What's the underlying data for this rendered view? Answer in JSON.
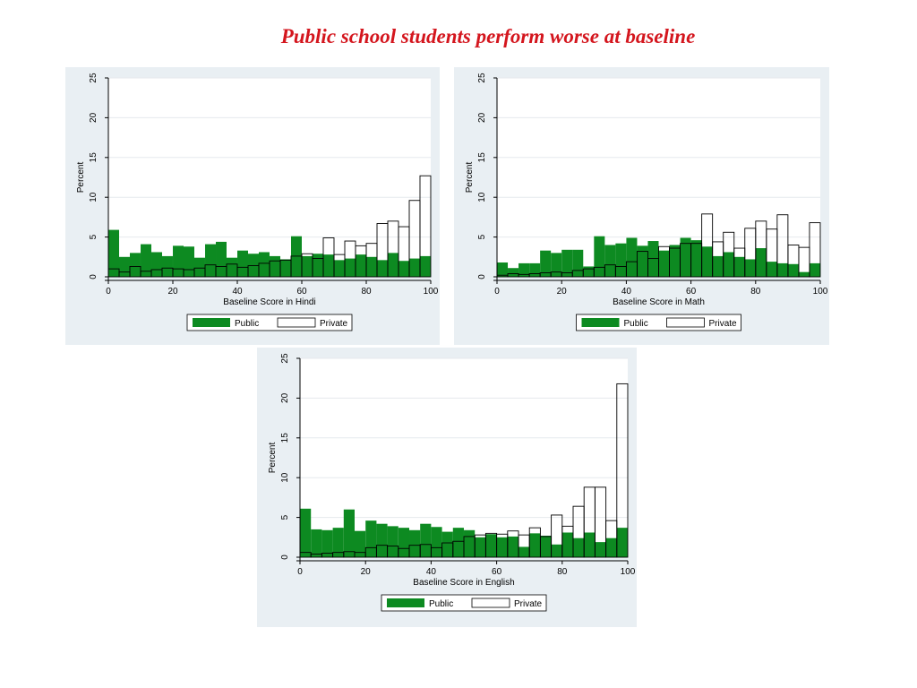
{
  "title": "Public school students perform worse at baseline",
  "colors": {
    "public": "#0d8a21",
    "private": "#ffffff",
    "title": "#d4161e"
  },
  "chart_data": [
    {
      "type": "bar",
      "xlabel": "Baseline Score in Hindi",
      "ylabel": "Percent",
      "xlim": [
        0,
        100
      ],
      "ylim": [
        0,
        25
      ],
      "xticks": [
        0,
        20,
        40,
        60,
        80,
        100
      ],
      "yticks": [
        0,
        5,
        10,
        15,
        20,
        25
      ],
      "bin_width": 3.33,
      "x": [
        1.67,
        5,
        8.33,
        11.67,
        15,
        18.33,
        21.67,
        25,
        28.33,
        31.67,
        35,
        38.33,
        41.67,
        45,
        48.33,
        51.67,
        55,
        58.33,
        61.67,
        65,
        68.33,
        71.67,
        75,
        78.33,
        81.67,
        85,
        88.33,
        91.67,
        95,
        98.33
      ],
      "series": [
        {
          "name": "Public",
          "values": [
            5.9,
            2.5,
            3.0,
            4.1,
            3.1,
            2.6,
            3.9,
            3.8,
            2.4,
            4.1,
            4.4,
            2.4,
            3.3,
            2.9,
            3.1,
            2.6,
            2.2,
            5.1,
            2.6,
            2.9,
            2.8,
            2.1,
            2.3,
            2.8,
            2.5,
            2.1,
            3.0,
            2.0,
            2.3,
            2.6
          ]
        },
        {
          "name": "Private",
          "values": [
            1.0,
            0.6,
            1.3,
            0.7,
            0.9,
            1.1,
            1.0,
            0.9,
            1.1,
            1.5,
            1.3,
            1.6,
            1.2,
            1.4,
            1.7,
            2.0,
            2.1,
            2.6,
            2.9,
            2.3,
            4.9,
            2.8,
            4.5,
            3.9,
            4.2,
            6.7,
            7.0,
            6.3,
            9.6,
            12.7
          ]
        }
      ],
      "legend": {
        "position": "bottom",
        "entries": [
          "Public",
          "Private"
        ]
      }
    },
    {
      "type": "bar",
      "xlabel": "Baseline Score in Math",
      "ylabel": "Percent",
      "xlim": [
        0,
        100
      ],
      "ylim": [
        0,
        25
      ],
      "xticks": [
        0,
        20,
        40,
        60,
        80,
        100
      ],
      "yticks": [
        0,
        5,
        10,
        15,
        20,
        25
      ],
      "bin_width": 3.33,
      "x": [
        1.67,
        5,
        8.33,
        11.67,
        15,
        18.33,
        21.67,
        25,
        28.33,
        31.67,
        35,
        38.33,
        41.67,
        45,
        48.33,
        51.67,
        55,
        58.33,
        61.67,
        65,
        68.33,
        71.67,
        75,
        78.33,
        81.67,
        85,
        88.33,
        91.67,
        95,
        98.33
      ],
      "series": [
        {
          "name": "Public",
          "values": [
            1.8,
            1.1,
            1.7,
            1.7,
            3.3,
            3.0,
            3.4,
            3.4,
            1.3,
            5.1,
            4.0,
            4.2,
            4.9,
            3.9,
            4.5,
            3.3,
            4.0,
            4.9,
            4.6,
            3.8,
            2.6,
            3.1,
            2.5,
            2.2,
            3.6,
            1.9,
            1.7,
            1.6,
            0.6,
            1.7
          ]
        },
        {
          "name": "Private",
          "values": [
            0.2,
            0.4,
            0.3,
            0.4,
            0.5,
            0.6,
            0.5,
            0.8,
            1.0,
            1.2,
            1.5,
            1.3,
            1.9,
            3.2,
            2.3,
            3.8,
            3.6,
            4.2,
            4.2,
            7.9,
            4.4,
            5.6,
            3.6,
            6.1,
            7.0,
            6.0,
            7.8,
            4.0,
            3.7,
            6.8
          ]
        }
      ],
      "legend": {
        "position": "bottom",
        "entries": [
          "Public",
          "Private"
        ]
      }
    },
    {
      "type": "bar",
      "xlabel": "Baseline Score in English",
      "ylabel": "Percent",
      "xlim": [
        0,
        100
      ],
      "ylim": [
        0,
        25
      ],
      "xticks": [
        0,
        20,
        40,
        60,
        80,
        100
      ],
      "yticks": [
        0,
        5,
        10,
        15,
        20,
        25
      ],
      "bin_width": 3.33,
      "x": [
        1.67,
        5,
        8.33,
        11.67,
        15,
        18.33,
        21.67,
        25,
        28.33,
        31.67,
        35,
        38.33,
        41.67,
        45,
        48.33,
        51.67,
        55,
        58.33,
        61.67,
        65,
        68.33,
        71.67,
        75,
        78.33,
        81.67,
        85,
        88.33,
        91.67,
        95,
        98.33
      ],
      "series": [
        {
          "name": "Public",
          "values": [
            6.1,
            3.5,
            3.4,
            3.7,
            6.0,
            3.3,
            4.6,
            4.2,
            3.9,
            3.7,
            3.4,
            4.2,
            3.8,
            3.2,
            3.7,
            3.4,
            2.5,
            2.9,
            2.5,
            2.6,
            1.3,
            3.0,
            2.7,
            1.6,
            3.1,
            2.4,
            3.1,
            1.9,
            2.4,
            3.7
          ]
        },
        {
          "name": "Private",
          "values": [
            0.6,
            0.4,
            0.5,
            0.6,
            0.7,
            0.6,
            1.2,
            1.5,
            1.4,
            1.1,
            1.5,
            1.6,
            1.2,
            1.8,
            2.0,
            2.6,
            2.8,
            3.0,
            2.9,
            3.3,
            2.8,
            3.7,
            2.6,
            5.3,
            3.9,
            6.4,
            8.8,
            8.8,
            4.6,
            21.8
          ]
        }
      ],
      "legend": {
        "position": "bottom",
        "entries": [
          "Public",
          "Private"
        ]
      }
    }
  ]
}
